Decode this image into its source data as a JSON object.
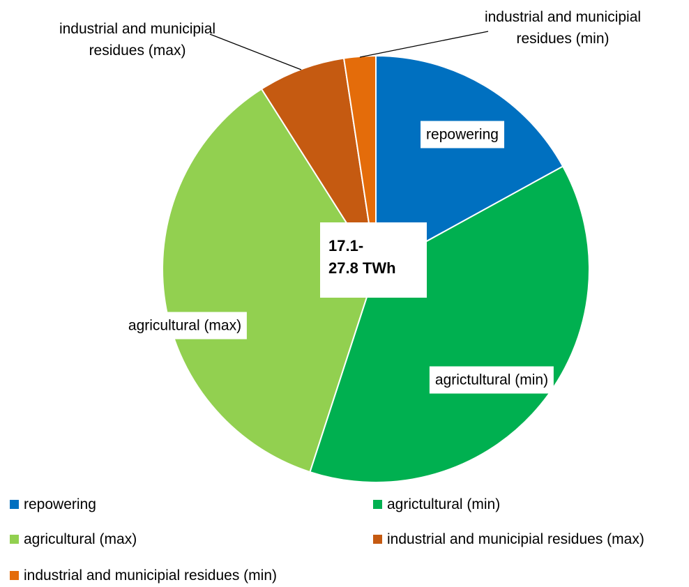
{
  "chart_data": {
    "type": "pie",
    "categories": [
      "repowering",
      "agrictultural (min)",
      "agricultural (max)",
      "industrial and municipial residues (max)",
      "industrial and municipial residues (min)"
    ],
    "values": [
      17,
      38,
      36,
      6.6,
      2.4
    ],
    "colors": [
      "#0070c0",
      "#00b050",
      "#92d050",
      "#c55a11",
      "#e46c0a"
    ],
    "annotation": [
      "17.1-",
      "27.8 TWh"
    ],
    "legend": "bottom"
  }
}
